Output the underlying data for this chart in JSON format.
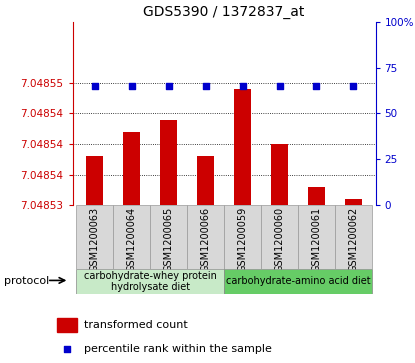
{
  "title": "GDS5390 / 1372837_at",
  "samples": [
    "GSM1200063",
    "GSM1200064",
    "GSM1200065",
    "GSM1200066",
    "GSM1200059",
    "GSM1200060",
    "GSM1200061",
    "GSM1200062"
  ],
  "red_values": [
    7.048538,
    7.048542,
    7.048544,
    7.048538,
    7.048549,
    7.04854,
    7.048533,
    7.048531
  ],
  "blue_values": [
    65,
    65,
    65,
    65,
    65,
    65,
    65,
    65
  ],
  "y_min": 7.04853,
  "y_max": 7.04856,
  "ytick_vals": [
    7.04853,
    7.048535,
    7.04854,
    7.048545,
    7.04855
  ],
  "ytick_labels": [
    "7.04853",
    "7.04854",
    "7.04854",
    "7.04854",
    "7.04855"
  ],
  "right_yticks": [
    0,
    25,
    50,
    75,
    100
  ],
  "right_ytick_labels": [
    "0",
    "25",
    "50",
    "75",
    "100%"
  ],
  "red_color": "#cc0000",
  "blue_color": "#0000cc",
  "left_axis_color": "#cc0000",
  "right_axis_color": "#0000cc",
  "base_value": 7.04853,
  "y_range": 3e-05,
  "legend_red": "transformed count",
  "legend_blue": "percentile rank within the sample",
  "protocol_label": "protocol",
  "group1_label": "carbohydrate-whey protein\nhydrolysate diet",
  "group1_color": "#c8eac8",
  "group2_label": "carbohydrate-amino acid diet",
  "group2_color": "#66cc66",
  "sample_bg": "#d8d8d8",
  "bar_width": 0.45
}
